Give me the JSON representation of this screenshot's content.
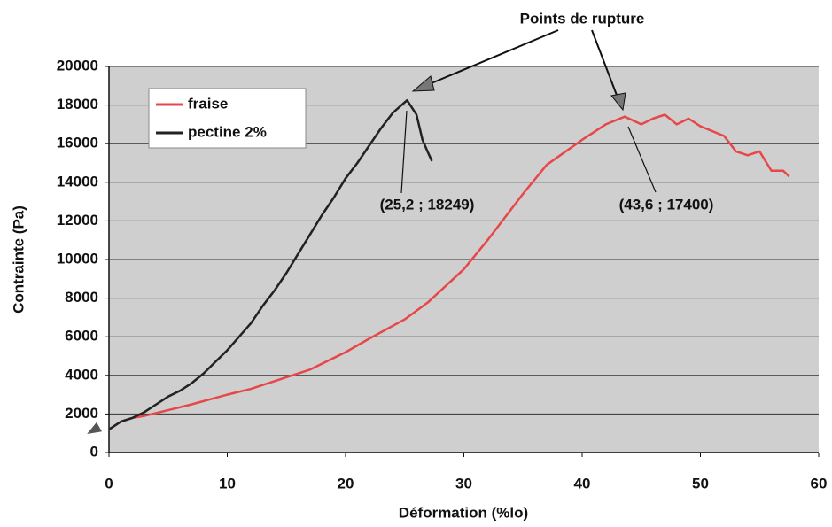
{
  "chart_data": {
    "type": "line",
    "x_label": "Déformation (%lo)",
    "y_label": "Contrainte (Pa)",
    "annotations": [
      "Points de rupture",
      "(25,2 ; 18249)",
      "(43,6 ; 17400)"
    ],
    "xlim": [
      0,
      60
    ],
    "xticks": [
      0,
      10,
      20,
      30,
      40,
      50,
      60
    ],
    "ylim": [
      0,
      20000
    ],
    "yticks": [
      0,
      2000,
      4000,
      6000,
      8000,
      10000,
      12000,
      14000,
      16000,
      18000,
      20000
    ],
    "grid": true,
    "legend": "upper left",
    "series": [
      {
        "name": "fraise",
        "color": "#e8474a",
        "x": [
          0,
          1,
          2,
          3,
          5,
          7,
          10,
          12,
          15,
          17,
          20,
          22,
          25,
          27,
          30,
          32,
          35,
          37,
          40,
          42,
          43.6,
          45,
          46,
          47,
          48,
          49,
          50,
          52,
          53,
          54,
          55,
          56,
          57,
          57.5
        ],
        "values": [
          1200,
          1600,
          1800,
          1900,
          2200,
          2500,
          3000,
          3300,
          3900,
          4300,
          5200,
          5900,
          6900,
          7800,
          9500,
          11000,
          13400,
          14900,
          16200,
          17000,
          17400,
          17000,
          17300,
          17500,
          17000,
          17300,
          16900,
          16400,
          15600,
          15400,
          15600,
          14600,
          14600,
          14300
        ]
      },
      {
        "name": "pectine 2%",
        "color": "#222222",
        "x": [
          0,
          1,
          2,
          3,
          4,
          5,
          6,
          7,
          8,
          9,
          10,
          11,
          12,
          13,
          14,
          15,
          16,
          17,
          18,
          19,
          20,
          21,
          22,
          23,
          24,
          25.2,
          26,
          26.5,
          27,
          27.3
        ],
        "values": [
          1200,
          1600,
          1800,
          2100,
          2500,
          2900,
          3200,
          3600,
          4100,
          4700,
          5300,
          6000,
          6700,
          7600,
          8400,
          9300,
          10300,
          11300,
          12300,
          13200,
          14200,
          15000,
          15900,
          16800,
          17600,
          18249,
          17500,
          16200,
          15500,
          15100
        ]
      }
    ]
  }
}
